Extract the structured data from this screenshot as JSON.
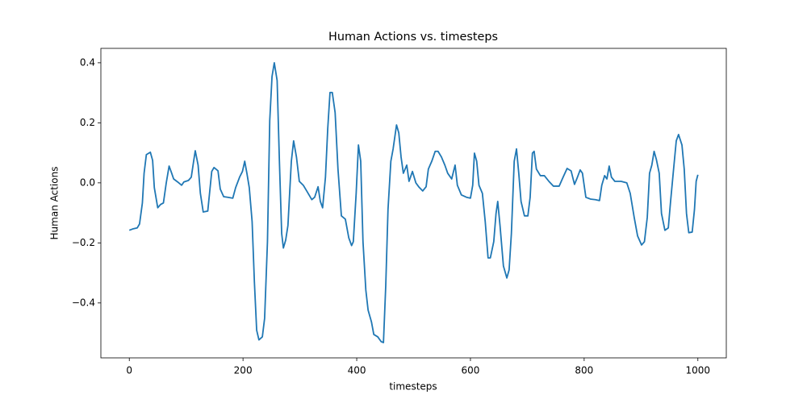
{
  "chart_data": {
    "type": "line",
    "title": "Human Actions vs. timesteps",
    "x_label": "timesteps",
    "y_label": "Human Actions",
    "color": "#1f77b4",
    "xlim": [
      -50,
      1050
    ],
    "ylim": [
      -0.583,
      0.448
    ],
    "xticks": [
      0,
      200,
      400,
      600,
      800,
      1000
    ],
    "yticks": [
      {
        "value": -0.4,
        "label": "−0.4"
      },
      {
        "value": -0.2,
        "label": "−0.2"
      },
      {
        "value": 0,
        "label": "0.0"
      },
      0.2,
      0.4
    ],
    "x": [
      0,
      7,
      14,
      18,
      23,
      26,
      30,
      37,
      41,
      44,
      50,
      55,
      60,
      65,
      70,
      74,
      78,
      85,
      92,
      96,
      104,
      109,
      113,
      116,
      121,
      125,
      130,
      138,
      145,
      149,
      156,
      160,
      166,
      173,
      182,
      187,
      194,
      199,
      203,
      207,
      211,
      216,
      220,
      224,
      228,
      234,
      238,
      243,
      247,
      251,
      255,
      260,
      264,
      268,
      271,
      275,
      279,
      285,
      289,
      294,
      299,
      306,
      313,
      321,
      326,
      332,
      336,
      340,
      345,
      349,
      353,
      357,
      362,
      367,
      373,
      380,
      386,
      391,
      394,
      399,
      403,
      407,
      411,
      416,
      420,
      426,
      430,
      437,
      443,
      447,
      451,
      455,
      460,
      464,
      470,
      474,
      478,
      482,
      488,
      492,
      498,
      504,
      509,
      516,
      522,
      526,
      532,
      538,
      543,
      549,
      555,
      560,
      567,
      573,
      577,
      584,
      593,
      600,
      604,
      607,
      611,
      615,
      621,
      626,
      631,
      635,
      641,
      645,
      648,
      652,
      658,
      664,
      668,
      672,
      677,
      681,
      685,
      689,
      695,
      701,
      705,
      709,
      712,
      716,
      723,
      730,
      738,
      746,
      756,
      763,
      770,
      777,
      783,
      787,
      793,
      797,
      803,
      811,
      820,
      827,
      831,
      836,
      840,
      844,
      848,
      854,
      865,
      875,
      881,
      888,
      894,
      901,
      906,
      911,
      915,
      919,
      923,
      927,
      932,
      936,
      942,
      948,
      952,
      957,
      962,
      966,
      972,
      976,
      980,
      984,
      990,
      994,
      997,
      1000
    ],
    "values": [
      -0.158,
      -0.153,
      -0.15,
      -0.137,
      -0.067,
      0.032,
      0.094,
      0.102,
      0.075,
      -0.016,
      -0.083,
      -0.072,
      -0.067,
      0,
      0.056,
      0.035,
      0.013,
      0.003,
      -0.008,
      0.003,
      0.008,
      0.019,
      0.07,
      0.107,
      0.059,
      -0.035,
      -0.097,
      -0.094,
      0.038,
      0.051,
      0.04,
      -0.021,
      -0.046,
      -0.048,
      -0.051,
      -0.016,
      0.019,
      0.038,
      0.072,
      0.03,
      -0.016,
      -0.129,
      -0.33,
      -0.491,
      -0.523,
      -0.513,
      -0.451,
      -0.196,
      0.207,
      0.354,
      0.4,
      0.341,
      0.072,
      -0.169,
      -0.217,
      -0.191,
      -0.142,
      0.072,
      0.14,
      0.086,
      0.005,
      -0.008,
      -0.03,
      -0.056,
      -0.048,
      -0.013,
      -0.062,
      -0.083,
      0.019,
      0.18,
      0.301,
      0.301,
      0.234,
      0.046,
      -0.11,
      -0.121,
      -0.183,
      -0.209,
      -0.196,
      -0.035,
      0.126,
      0.072,
      -0.196,
      -0.357,
      -0.424,
      -0.464,
      -0.505,
      -0.513,
      -0.529,
      -0.532,
      -0.344,
      -0.089,
      0.072,
      0.113,
      0.193,
      0.166,
      0.086,
      0.032,
      0.059,
      0.005,
      0.038,
      0,
      -0.013,
      -0.027,
      -0.013,
      0.046,
      0.072,
      0.105,
      0.105,
      0.086,
      0.059,
      0.032,
      0.013,
      0.059,
      -0.008,
      -0.04,
      -0.048,
      -0.051,
      -0.008,
      0.099,
      0.072,
      -0.008,
      -0.035,
      -0.129,
      -0.25,
      -0.25,
      -0.196,
      -0.102,
      -0.062,
      -0.142,
      -0.277,
      -0.317,
      -0.29,
      -0.169,
      0.072,
      0.113,
      0.032,
      -0.062,
      -0.11,
      -0.11,
      -0.048,
      0.099,
      0.105,
      0.046,
      0.024,
      0.024,
      0.005,
      -0.011,
      -0.011,
      0.019,
      0.048,
      0.04,
      -0.005,
      0.013,
      0.043,
      0.032,
      -0.048,
      -0.054,
      -0.056,
      -0.059,
      -0.008,
      0.024,
      0.013,
      0.056,
      0.019,
      0.005,
      0.005,
      0,
      -0.035,
      -0.115,
      -0.177,
      -0.207,
      -0.196,
      -0.115,
      0.032,
      0.059,
      0.105,
      0.078,
      0.032,
      -0.102,
      -0.158,
      -0.15,
      -0.062,
      0.04,
      0.14,
      0.161,
      0.126,
      0.046,
      -0.102,
      -0.166,
      -0.164,
      -0.089,
      0.005,
      0.027
    ]
  }
}
